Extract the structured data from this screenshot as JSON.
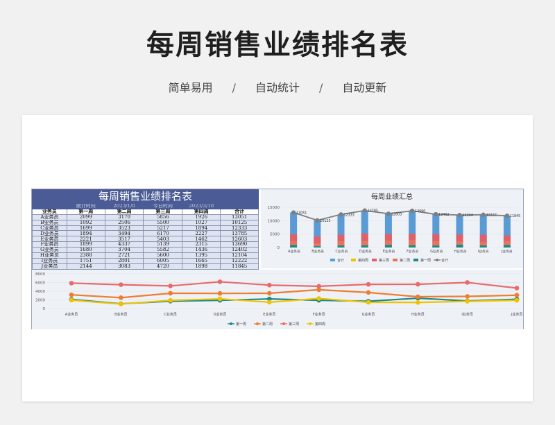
{
  "header": {
    "title": "每周销售业绩排名表",
    "subtitle": [
      "简单易用",
      "自动统计",
      "自动更新"
    ],
    "separator": "/"
  },
  "sheet": {
    "title": "每周销售业绩排名表",
    "meta": [
      "统计时间",
      "2023/1/8",
      "今日时间",
      "2023/3/18"
    ],
    "columns": [
      "业务员",
      "第一周",
      "第二周",
      "第三周",
      "第四周",
      "合计"
    ],
    "rows": [
      [
        "A业务员",
        "2099",
        "3170",
        "5856",
        "1926",
        "13051"
      ],
      [
        "B业务员",
        "1092",
        "2506",
        "5500",
        "1027",
        "10125"
      ],
      [
        "C业务员",
        "1699",
        "3523",
        "5217",
        "1894",
        "12333"
      ],
      [
        "D业务员",
        "1894",
        "3494",
        "6170",
        "2227",
        "13785"
      ],
      [
        "E业务员",
        "2221",
        "3517",
        "5403",
        "1462",
        "12603"
      ],
      [
        "F业务员",
        "1899",
        "4337",
        "5139",
        "2315",
        "13690"
      ],
      [
        "G业务员",
        "1680",
        "3704",
        "5582",
        "1436",
        "12402"
      ],
      [
        "H业务员",
        "2388",
        "2721",
        "5600",
        "1395",
        "12104"
      ],
      [
        "I业务员",
        "1751",
        "2801",
        "6005",
        "1665",
        "12222"
      ],
      [
        "J业务员",
        "2144",
        "3083",
        "4720",
        "1898",
        "11845"
      ]
    ]
  },
  "chart_data": [
    {
      "type": "bar",
      "title": "每周业绩汇总",
      "categories": [
        "A业务员",
        "B业务员",
        "C业务员",
        "D业务员",
        "E业务员",
        "F业务员",
        "G业务员",
        "H业务员",
        "I业务员",
        "J业务员"
      ],
      "ylim": [
        0,
        15000
      ],
      "yticks": [
        "0",
        "5000",
        "10000",
        "15000"
      ],
      "series": [
        {
          "name": "第一周",
          "color": "#1b8a8a",
          "values": [
            2099,
            1092,
            1699,
            1894,
            2221,
            1899,
            1680,
            2388,
            1751,
            2144
          ]
        },
        {
          "name": "第二周",
          "color": "#e8755a",
          "values": [
            3170,
            2506,
            3523,
            3494,
            3517,
            4337,
            3704,
            2721,
            2801,
            3083
          ]
        },
        {
          "name": "第三周",
          "color": "#e0606a",
          "values": [
            5856,
            5500,
            5217,
            6170,
            5403,
            5139,
            5582,
            5600,
            6005,
            4720
          ]
        },
        {
          "name": "第四周",
          "color": "#f2c200",
          "values": [
            1926,
            1027,
            1894,
            2227,
            1462,
            2315,
            1436,
            1395,
            1665,
            1898
          ]
        }
      ],
      "total": {
        "name": "合计",
        "color": "#5b9bd5",
        "values": [
          13051,
          10125,
          12333,
          13785,
          12603,
          13690,
          12402,
          12104,
          12222,
          11845
        ],
        "labels": [
          "13051",
          "10125",
          "12333",
          "13785",
          "12603",
          "13690",
          "12402",
          "12104",
          "12222",
          "11845"
        ]
      },
      "total_line": {
        "name": "合计",
        "color": "#7f7f7f"
      },
      "legend_order": [
        "合计",
        "第四周",
        "第三周",
        "第二周",
        "第一周",
        "合计"
      ],
      "legend": "bottom"
    },
    {
      "type": "line",
      "categories": [
        "A业务员",
        "B业务员",
        "C业务员",
        "D业务员",
        "E业务员",
        "F业务员",
        "G业务员",
        "H业务员",
        "I业务员",
        "J业务员"
      ],
      "ylim": [
        0,
        8000
      ],
      "yticks": [
        "0",
        "2000",
        "4000",
        "6000",
        "8000"
      ],
      "series": [
        {
          "name": "第一周",
          "color": "#1b8a8a",
          "values": [
            2099,
            1092,
            1699,
            1894,
            2221,
            1899,
            1680,
            2388,
            1751,
            2144
          ]
        },
        {
          "name": "第二周",
          "color": "#ee7d31",
          "values": [
            3170,
            2506,
            3523,
            3494,
            3517,
            4337,
            3704,
            2721,
            2801,
            3083
          ]
        },
        {
          "name": "第三周",
          "color": "#e86a6a",
          "values": [
            5856,
            5500,
            5217,
            6170,
            5403,
            5139,
            5582,
            5600,
            6005,
            4720
          ]
        },
        {
          "name": "第四周",
          "color": "#f2c200",
          "values": [
            1926,
            1027,
            1894,
            2227,
            1462,
            2315,
            1436,
            1395,
            1665,
            1898
          ]
        }
      ],
      "legend": "bottom"
    }
  ]
}
